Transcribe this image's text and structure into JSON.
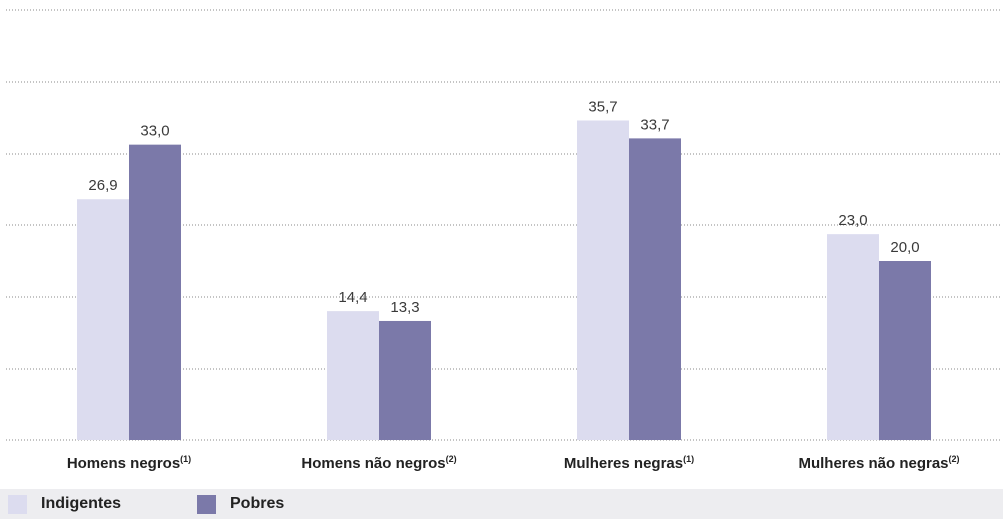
{
  "chart_data": {
    "type": "bar",
    "categories": [
      "Homens negros",
      "Homens não negros",
      "Mulheres negras",
      "Mulheres não negras"
    ],
    "category_notes": [
      "(1)",
      "(2)",
      "(1)",
      "(2)"
    ],
    "series": [
      {
        "name": "Indigentes",
        "values": [
          26.9,
          14.4,
          35.7,
          23.0
        ],
        "labels": [
          "26,9",
          "14,4",
          "35,7",
          "23,0"
        ],
        "color": "#dcdcef"
      },
      {
        "name": "Pobres",
        "values": [
          33.0,
          13.3,
          33.7,
          20.0
        ],
        "labels": [
          "33,0",
          "13,3",
          "33,7",
          "20,0"
        ],
        "color": "#7b79a9"
      }
    ],
    "ylim": [
      0,
      40
    ],
    "grid": true,
    "legend_position": "bottom-left"
  }
}
